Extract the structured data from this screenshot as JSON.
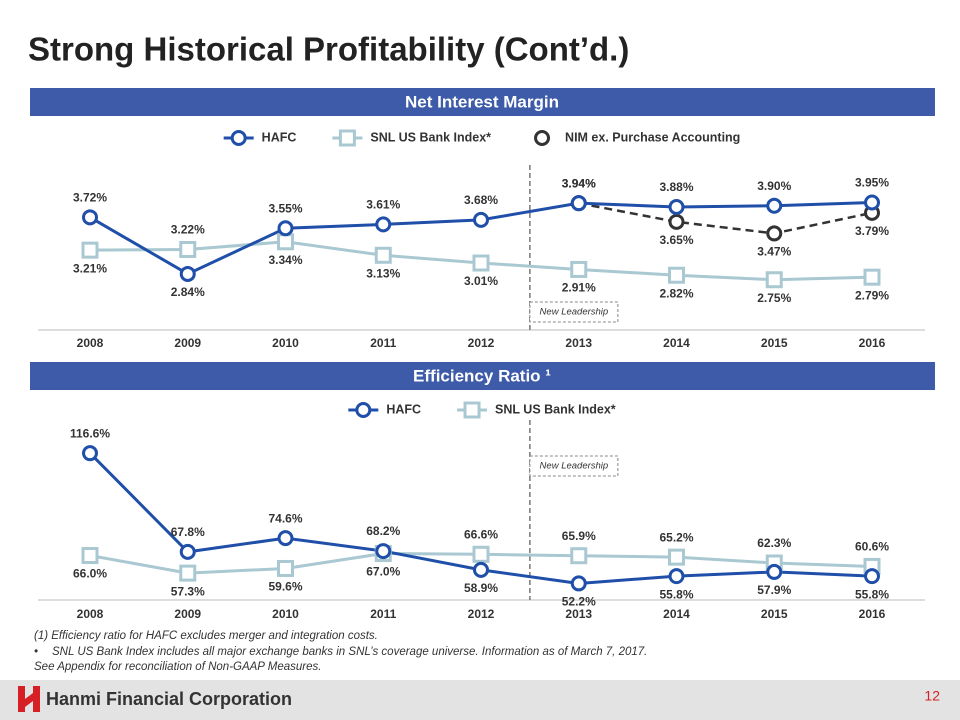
{
  "title": "Strong Historical Profitability (Cont’d.)",
  "chart_data": [
    {
      "type": "line",
      "title": "Net Interest Margin",
      "categories": [
        "2008",
        "2009",
        "2010",
        "2011",
        "2012",
        "2013",
        "2014",
        "2015",
        "2016"
      ],
      "ylim": [
        2.0,
        4.3
      ],
      "annotation": "New Leadership",
      "series": [
        {
          "name": "HAFC",
          "color": "#1f4fa8",
          "marker": "circle",
          "dashed": false,
          "values": [
            3.72,
            2.84,
            3.55,
            3.61,
            3.68,
            3.94,
            3.88,
            3.9,
            3.95
          ],
          "value_labels": [
            "3.72%",
            "2.84%",
            "3.55%",
            "3.61%",
            "3.68%",
            "3.94%",
            "3.88%",
            "3.90%",
            "3.95%"
          ]
        },
        {
          "name": "SNL US Bank Index*",
          "color": "#a9c8d2",
          "marker": "square",
          "dashed": false,
          "values": [
            3.21,
            3.22,
            3.34,
            3.13,
            3.01,
            2.91,
            2.82,
            2.75,
            2.79
          ],
          "value_labels": [
            "3.21%",
            "3.22%",
            "3.34%",
            "3.13%",
            "3.01%",
            "2.91%",
            "2.82%",
            "2.75%",
            "2.79%"
          ]
        },
        {
          "name": "NIM ex. Purchase Accounting",
          "color": "#333333",
          "marker": "circle",
          "dashed": true,
          "values": [
            null,
            null,
            null,
            null,
            null,
            3.94,
            3.65,
            3.47,
            3.79
          ],
          "value_labels": [
            null,
            null,
            null,
            null,
            null,
            "3.94%",
            "3.65%",
            "3.47%",
            "3.79%"
          ]
        }
      ]
    },
    {
      "type": "line",
      "title": "Efficiency Ratio ¹",
      "categories": [
        "2008",
        "2009",
        "2010",
        "2011",
        "2012",
        "2013",
        "2014",
        "2015",
        "2016"
      ],
      "ylim": [
        45,
        133
      ],
      "annotation": "New Leadership",
      "series": [
        {
          "name": "HAFC",
          "color": "#1f4fa8",
          "marker": "circle",
          "dashed": false,
          "values": [
            116.6,
            67.8,
            74.6,
            68.2,
            58.9,
            52.2,
            55.8,
            57.9,
            55.8
          ],
          "value_labels": [
            "116.6%",
            "67.8%",
            "74.6%",
            "68.2%",
            "58.9%",
            "52.2%",
            "55.8%",
            "57.9%",
            "55.8%"
          ]
        },
        {
          "name": "SNL US Bank Index*",
          "color": "#a9c8d2",
          "marker": "square",
          "dashed": false,
          "values": [
            66.0,
            57.3,
            59.6,
            67.0,
            66.6,
            65.9,
            65.2,
            62.3,
            60.6
          ],
          "value_labels": [
            "66.0%",
            "57.3%",
            "59.6%",
            "67.0%",
            "66.6%",
            "65.9%",
            "65.2%",
            "62.3%",
            "60.6%"
          ]
        }
      ]
    }
  ],
  "footnotes": [
    "(1)   Efficiency ratio for HAFC excludes merger and integration costs.",
    "SNL US Bank Index includes all major exchange banks in SNL’s coverage universe. Information as of March 7, 2017.",
    "See Appendix for reconciliation of Non-GAAP Measures."
  ],
  "footer": {
    "company": "Hanmi Financial Corporation",
    "page": "12"
  }
}
